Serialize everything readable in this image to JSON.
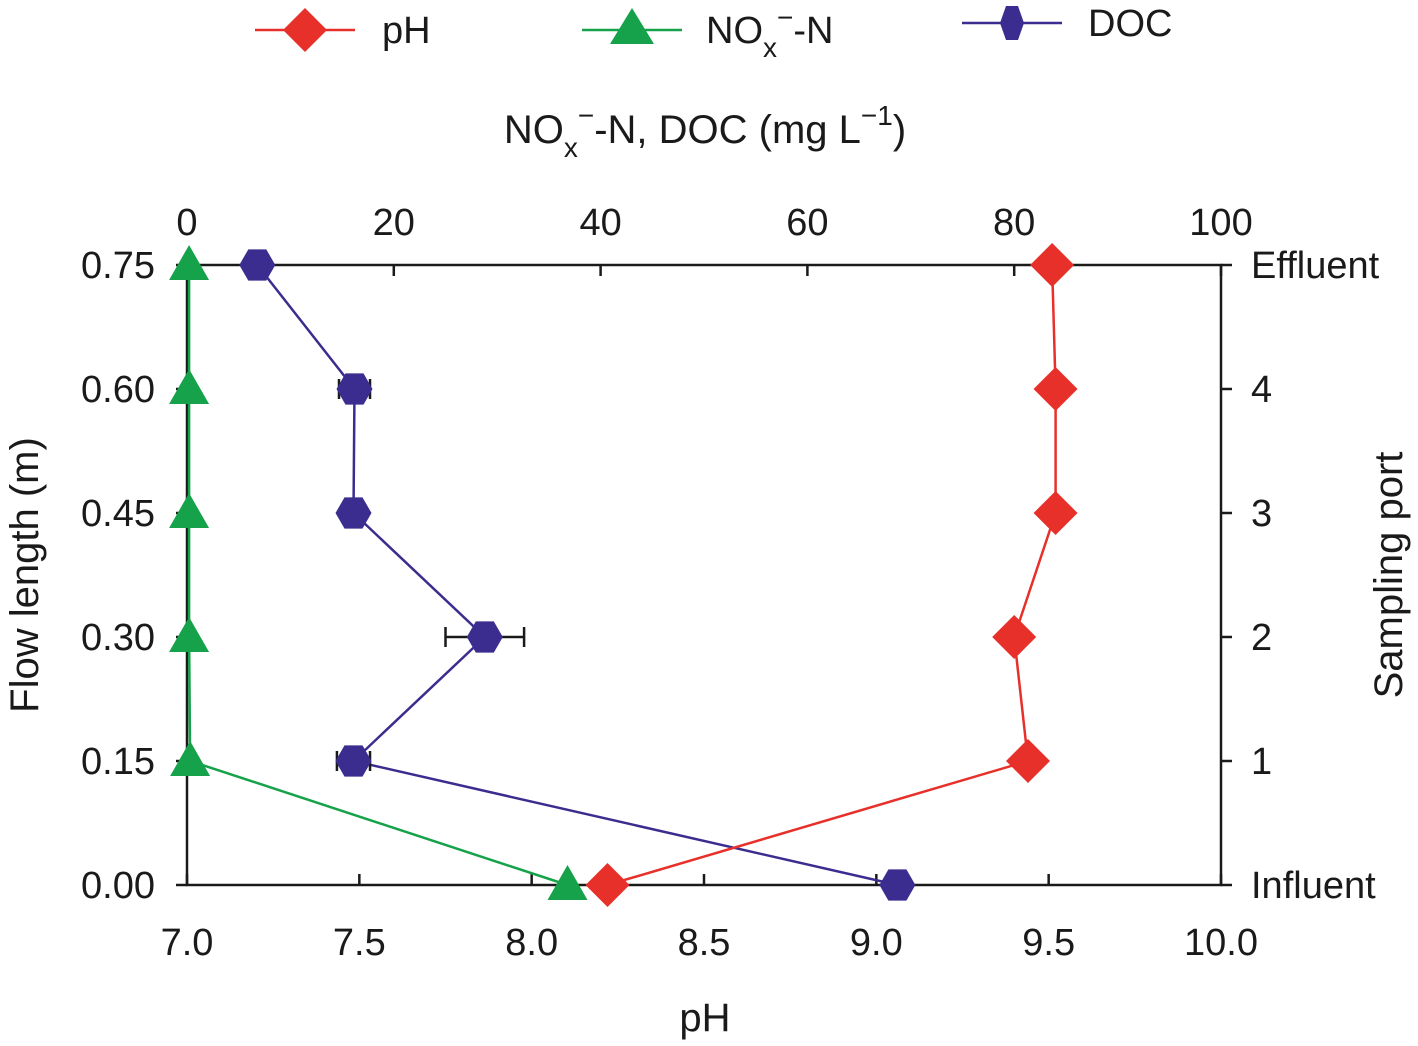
{
  "chart_data": {
    "type": "line",
    "orientation": "horizontal-profile",
    "legend": [
      {
        "key": "ph",
        "label": "pH",
        "color": "#e8302a",
        "marker": "diamond"
      },
      {
        "key": "nox",
        "label_main": "NO",
        "label_sub": "x",
        "label_sup": "−",
        "label_tail": "-N",
        "color": "#16a24a",
        "marker": "triangle"
      },
      {
        "key": "doc",
        "label": "DOC",
        "color": "#3b2d8f",
        "marker": "hexagon"
      }
    ],
    "top_axis": {
      "title_main": "NO",
      "title_sub": "x",
      "title_sup": "−",
      "title_mid": "-N, DOC (mg L",
      "title_sup2": "−1",
      "title_tail": ")",
      "range": [
        0,
        100
      ],
      "ticks": [
        "0",
        "20",
        "40",
        "60",
        "80",
        "100"
      ],
      "tick_values": [
        0,
        20,
        40,
        60,
        80,
        100
      ]
    },
    "bottom_axis": {
      "title": "pH",
      "range": [
        7.0,
        10.0
      ],
      "ticks": [
        "7.0",
        "7.5",
        "8.0",
        "8.5",
        "9.0",
        "9.5",
        "10.0"
      ],
      "tick_values": [
        7.0,
        7.5,
        8.0,
        8.5,
        9.0,
        9.5,
        10.0
      ]
    },
    "left_axis": {
      "title": "Flow length (m)",
      "range": [
        0.0,
        0.75
      ],
      "ticks": [
        "0.00",
        "0.15",
        "0.30",
        "0.45",
        "0.60",
        "0.75"
      ],
      "tick_values": [
        0.0,
        0.15,
        0.3,
        0.45,
        0.6,
        0.75
      ]
    },
    "right_axis": {
      "title": "Sampling port",
      "ticks": [
        "Influent",
        "1",
        "2",
        "3",
        "4",
        "Effluent"
      ],
      "tick_values": [
        0.0,
        0.15,
        0.3,
        0.45,
        0.6,
        0.75
      ]
    },
    "series": [
      {
        "name": "pH",
        "axis": "bottom",
        "color": "#e8302a",
        "marker": "diamond",
        "points": [
          {
            "y": 0.0,
            "x": 8.22
          },
          {
            "y": 0.15,
            "x": 9.44
          },
          {
            "y": 0.3,
            "x": 9.4
          },
          {
            "y": 0.45,
            "x": 9.52
          },
          {
            "y": 0.6,
            "x": 9.52
          },
          {
            "y": 0.75,
            "x": 9.51
          }
        ]
      },
      {
        "name": "NOx−-N",
        "axis": "top",
        "color": "#16a24a",
        "marker": "triangle",
        "points": [
          {
            "y": 0.0,
            "x": 36.8
          },
          {
            "y": 0.15,
            "x": 0.3
          },
          {
            "y": 0.3,
            "x": 0.2
          },
          {
            "y": 0.45,
            "x": 0.2
          },
          {
            "y": 0.6,
            "x": 0.2
          },
          {
            "y": 0.75,
            "x": 0.2
          }
        ]
      },
      {
        "name": "DOC",
        "axis": "top",
        "color": "#3b2d8f",
        "marker": "hexagon",
        "points": [
          {
            "y": 0.0,
            "x": 68.7,
            "err": 0
          },
          {
            "y": 0.15,
            "x": 16.1,
            "err": 1.6
          },
          {
            "y": 0.3,
            "x": 28.8,
            "err": 3.8
          },
          {
            "y": 0.45,
            "x": 16.1,
            "err": 0.9
          },
          {
            "y": 0.6,
            "x": 16.2,
            "err": 1.5
          },
          {
            "y": 0.75,
            "x": 6.8,
            "err": 0
          }
        ]
      }
    ]
  }
}
